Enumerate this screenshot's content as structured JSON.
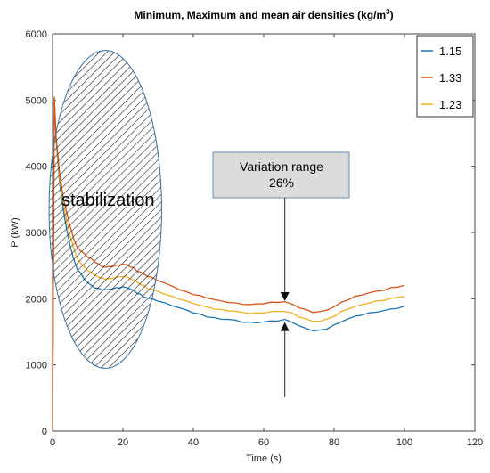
{
  "chart_data": {
    "type": "line",
    "title": "Minimum, Maximum and mean air densities (kg/m",
    "title_superscript": "3",
    "title_suffix": ")",
    "xlabel": "Time (s)",
    "ylabel": "P (kW)",
    "xlim": [
      0,
      120
    ],
    "ylim": [
      0,
      6000
    ],
    "xticks": [
      "0",
      "20",
      "40",
      "60",
      "80",
      "100",
      "120"
    ],
    "yticks": [
      "0",
      "1000",
      "2000",
      "3000",
      "4000",
      "5000",
      "6000"
    ],
    "grid": false,
    "legend_position": "top-right",
    "x": [
      0,
      0.5,
      1,
      2,
      3,
      4,
      5,
      6,
      7,
      8,
      9,
      10,
      11,
      12,
      13,
      14,
      15,
      16,
      17,
      18,
      19,
      20,
      21,
      22,
      23,
      24,
      25,
      26,
      27,
      28,
      30,
      32,
      34,
      36,
      38,
      40,
      42,
      44,
      46,
      48,
      50,
      52,
      54,
      56,
      58,
      60,
      62,
      64,
      66,
      68,
      70,
      72,
      74,
      76,
      78,
      80,
      82,
      84,
      86,
      88,
      90,
      92,
      94,
      96,
      98,
      100
    ],
    "series": [
      {
        "name": "1.15",
        "color": "#1f77b4",
        "values": [
          0,
          5050,
          4400,
          3750,
          3350,
          3050,
          2800,
          2600,
          2450,
          2380,
          2300,
          2240,
          2200,
          2170,
          2150,
          2140,
          2130,
          2140,
          2150,
          2160,
          2170,
          2175,
          2170,
          2150,
          2120,
          2090,
          2060,
          2030,
          2010,
          2000,
          1970,
          1930,
          1900,
          1860,
          1830,
          1790,
          1760,
          1730,
          1710,
          1690,
          1690,
          1670,
          1650,
          1640,
          1640,
          1650,
          1660,
          1670,
          1680,
          1650,
          1590,
          1550,
          1520,
          1520,
          1550,
          1600,
          1650,
          1700,
          1730,
          1760,
          1780,
          1800,
          1820,
          1840,
          1860,
          1880
        ]
      },
      {
        "name": "1.33",
        "color": "#d9541a",
        "values": [
          0,
          5050,
          4450,
          3900,
          3550,
          3300,
          3100,
          2900,
          2780,
          2720,
          2680,
          2630,
          2600,
          2560,
          2520,
          2490,
          2480,
          2480,
          2490,
          2500,
          2510,
          2520,
          2510,
          2490,
          2460,
          2420,
          2400,
          2370,
          2340,
          2320,
          2280,
          2230,
          2190,
          2140,
          2100,
          2070,
          2040,
          2010,
          1990,
          1960,
          1950,
          1930,
          1920,
          1910,
          1920,
          1930,
          1940,
          1950,
          1950,
          1920,
          1870,
          1830,
          1800,
          1800,
          1830,
          1880,
          1940,
          1990,
          2030,
          2060,
          2090,
          2110,
          2130,
          2160,
          2180,
          2200
        ]
      },
      {
        "name": "1.23",
        "color": "#edb120",
        "values": [
          0,
          5050,
          4420,
          3820,
          3450,
          3170,
          2950,
          2760,
          2610,
          2540,
          2480,
          2430,
          2390,
          2360,
          2330,
          2310,
          2300,
          2300,
          2310,
          2320,
          2330,
          2340,
          2330,
          2310,
          2280,
          2250,
          2220,
          2190,
          2160,
          2140,
          2110,
          2070,
          2030,
          2000,
          1960,
          1930,
          1900,
          1870,
          1850,
          1830,
          1820,
          1810,
          1790,
          1780,
          1780,
          1790,
          1800,
          1810,
          1810,
          1780,
          1730,
          1690,
          1660,
          1660,
          1690,
          1740,
          1800,
          1850,
          1880,
          1910,
          1940,
          1960,
          1980,
          2000,
          2020,
          2040
        ]
      }
    ],
    "annotations": {
      "variation_box_line1": "Variation range",
      "variation_box_line2": "26%",
      "stabilization_label": "stabilization",
      "variation_range_at_x": 66,
      "variation_range_top": 1950,
      "variation_range_bottom": 1660,
      "stabilization_center": [
        15,
        3350
      ],
      "stabilization_radius": [
        16,
        2400
      ]
    },
    "colors": {
      "ellipse_stroke": "#3a6ea5",
      "box_fill": "#dcdcdc",
      "box_stroke": "#6a8fb5"
    }
  }
}
